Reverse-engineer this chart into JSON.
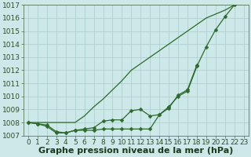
{
  "x": [
    0,
    1,
    2,
    3,
    4,
    5,
    6,
    7,
    8,
    9,
    10,
    11,
    12,
    13,
    14,
    15,
    16,
    17,
    18,
    19,
    20,
    21,
    22,
    23
  ],
  "line1": [
    1008.0,
    1008.0,
    1008.0,
    1008.0,
    1008.0,
    1008.0,
    1008.5,
    1009.2,
    1009.8,
    1010.5,
    1011.2,
    1012.0,
    1012.5,
    1013.0,
    1013.5,
    1014.0,
    1014.5,
    1015.0,
    1015.5,
    1016.0,
    1016.3,
    1016.6,
    1017.0,
    null
  ],
  "line2": [
    1008.0,
    1007.9,
    1007.8,
    1007.3,
    1007.2,
    1007.4,
    1007.5,
    1007.6,
    1008.1,
    1008.2,
    1008.2,
    1008.9,
    1009.0,
    1008.5,
    1008.6,
    1009.2,
    1010.0,
    1010.4,
    1012.3,
    1013.8,
    1015.1,
    1016.1,
    1017.0,
    null
  ],
  "line3": [
    1008.0,
    1007.9,
    1007.7,
    1007.2,
    1007.2,
    1007.4,
    1007.4,
    1007.4,
    1007.5,
    1007.5,
    1007.5,
    1007.5,
    1007.5,
    1007.5,
    1008.6,
    1009.1,
    1010.1,
    1010.5,
    1012.4,
    null,
    null,
    null,
    null,
    null
  ],
  "ylim": [
    1007,
    1017
  ],
  "xlim_min": -0.5,
  "xlim_max": 23.5,
  "yticks": [
    1007,
    1008,
    1009,
    1010,
    1011,
    1012,
    1013,
    1014,
    1015,
    1016,
    1017
  ],
  "xticks": [
    0,
    1,
    2,
    3,
    4,
    5,
    6,
    7,
    8,
    9,
    10,
    11,
    12,
    13,
    14,
    15,
    16,
    17,
    18,
    19,
    20,
    21,
    22,
    23
  ],
  "line_color": "#2d6a2d",
  "bg_color": "#cce8e8",
  "grid_color": "#aacaca",
  "xlabel": "Graphe pression niveau de la mer (hPa)",
  "xlabel_fontsize": 8,
  "tick_fontsize": 6.5
}
